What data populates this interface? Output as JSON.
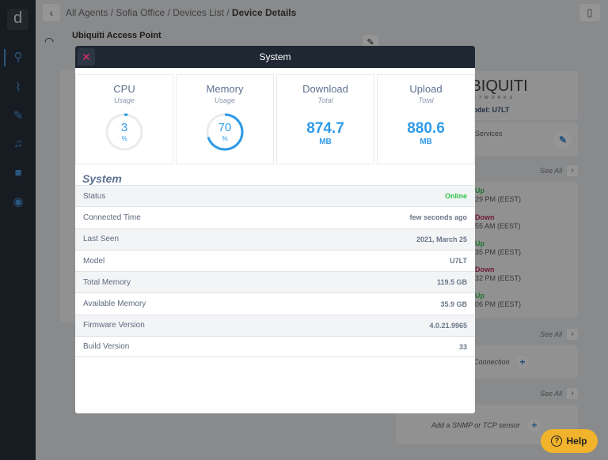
{
  "breadcrumb": {
    "items": [
      "All Agents",
      "Sofia Office",
      "Devices List"
    ],
    "current": "Device Details"
  },
  "device": {
    "title": "Ubiquiti Access Point"
  },
  "background": {
    "brand": "UBIQUITI",
    "brand_sub": "NETWORKS",
    "model": "Model: U7LT",
    "services": "Services",
    "see_all": "See All",
    "events": [
      {
        "state": "Up",
        "time": "29 PM (EEST)"
      },
      {
        "state": "Down",
        "time": "55 AM (EEST)"
      },
      {
        "state": "Up",
        "time": "35 PM (EEST)"
      },
      {
        "state": "Down",
        "time": "32 PM (EEST)"
      },
      {
        "state": "Up",
        "time": "06 PM (EEST)"
      }
    ],
    "connection": "Connection",
    "sensor": "Add a SNMP or TCP sensor"
  },
  "help": {
    "label": "Help"
  },
  "modal": {
    "title": "System",
    "stats": [
      {
        "title": "CPU",
        "sub": "Usage",
        "value": "3",
        "unit": "%",
        "percent": 3
      },
      {
        "title": "Memory",
        "sub": "Usage",
        "value": "70",
        "unit": "%",
        "percent": 70
      },
      {
        "title": "Download",
        "sub": "Total",
        "value": "874.7",
        "unit": "MB"
      },
      {
        "title": "Upload",
        "sub": "Total",
        "value": "880.6",
        "unit": "MB"
      }
    ],
    "section": "System",
    "rows": [
      {
        "label": "Status",
        "value": "Online"
      },
      {
        "label": "Connected Time",
        "value": "few seconds ago"
      },
      {
        "label": "Last Seen",
        "value": "2021, March 25"
      },
      {
        "label": "Model",
        "value": "U7LT"
      },
      {
        "label": "Total Memory",
        "value": "119.5 GB"
      },
      {
        "label": "Available Memory",
        "value": "35.9 GB"
      },
      {
        "label": "Firmware Version",
        "value": "4.0.21.9965"
      },
      {
        "label": "Build Version",
        "value": "33"
      }
    ]
  },
  "colors": {
    "accent": "#2f9be8",
    "online": "#2ec44a",
    "down": "#c0264f",
    "help": "#f0b32b"
  }
}
